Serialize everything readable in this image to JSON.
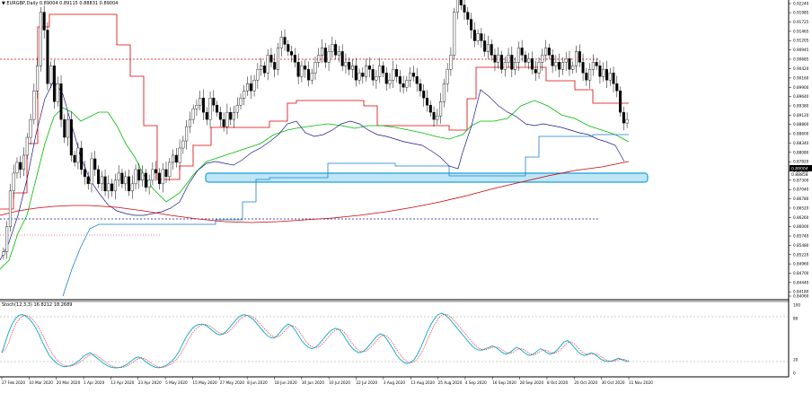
{
  "header": {
    "symbol_line": "▼ EURGBP,Daily  0.89004 0.89115 0.88831 0.89004"
  },
  "indicator": {
    "title": "Stoch(12,3,3) 16.8212 18.2689"
  },
  "colors": {
    "bull": "#000000",
    "bear": "#000000",
    "red": "#dd0000",
    "green": "#00bb00",
    "blue": "#1a7fd0",
    "navy": "#1a1a8a",
    "ma_red": "#cc0000",
    "zone_fill": "#bfe6f7",
    "zone_stroke": "#1aa0d8",
    "stoch_main": "#00a8cc",
    "stoch_signal": "#ee3333"
  },
  "chart_data": [
    {
      "type": "candlestick",
      "title": "EURGBP,Daily",
      "ylim": [
        0.8406,
        0.9224
      ],
      "y_ticks": [
        "0.92240",
        "0.91985",
        "0.91725",
        "0.91465",
        "0.91205",
        "0.90945",
        "0.90685",
        "0.90420",
        "0.90160",
        "0.89900",
        "0.89640",
        "0.89380",
        "0.89120",
        "0.88860",
        "0.88600",
        "0.88340",
        "0.88080",
        "0.87820",
        "0.87560",
        "0.87300",
        "0.87040",
        "0.86780",
        "0.86520",
        "0.86260",
        "0.86000",
        "0.85740",
        "0.85480",
        "0.85220",
        "0.84960",
        "0.84700",
        "0.84440",
        "0.84180",
        "0.84060"
      ],
      "price_label": "0.89004",
      "price_label2": "0.88858",
      "x_tick_labels": [
        "27 Feb 2020",
        "10 Mar 2020",
        "20 Mar 2020",
        "1 Apr 2020",
        "13 Apr 2020",
        "23 Apr 2020",
        "5 May 2020",
        "15 May 2020",
        "27 May 2020",
        "8 Jun 2020",
        "18 Jun 2020",
        "30 Jun 2020",
        "10 Jul 2020",
        "22 Jul 2020",
        "3 Aug 2020",
        "13 Aug 2020",
        "25 Aug 2020",
        "4 Sep 2020",
        "16 Sep 2020",
        "28 Sep 2020",
        "8 Oct 2020",
        "20 Oct 2020",
        "30 Oct 2020",
        "11 Nov 2020"
      ],
      "closes": [
        0.853,
        0.86,
        0.87,
        0.875,
        0.878,
        0.876,
        0.88,
        0.885,
        0.89,
        0.898,
        0.905,
        0.92,
        0.915,
        0.9,
        0.905,
        0.895,
        0.9,
        0.89,
        0.885,
        0.89,
        0.88,
        0.878,
        0.882,
        0.876,
        0.874,
        0.872,
        0.879,
        0.876,
        0.872,
        0.874,
        0.87,
        0.872,
        0.87,
        0.873,
        0.875,
        0.872,
        0.874,
        0.87,
        0.872,
        0.876,
        0.873,
        0.875,
        0.871,
        0.873,
        0.876,
        0.875,
        0.872,
        0.876,
        0.874,
        0.878,
        0.88,
        0.878,
        0.882,
        0.884,
        0.888,
        0.89,
        0.893,
        0.894,
        0.896,
        0.892,
        0.89,
        0.896,
        0.894,
        0.892,
        0.89,
        0.888,
        0.892,
        0.89,
        0.892,
        0.894,
        0.896,
        0.898,
        0.9,
        0.898,
        0.901,
        0.904,
        0.905,
        0.903,
        0.908,
        0.906,
        0.904,
        0.91,
        0.913,
        0.911,
        0.909,
        0.908,
        0.906,
        0.902,
        0.905,
        0.904,
        0.901,
        0.903,
        0.906,
        0.908,
        0.91,
        0.906,
        0.909,
        0.911,
        0.908,
        0.909,
        0.905,
        0.906,
        0.904,
        0.905,
        0.901,
        0.903,
        0.902,
        0.905,
        0.904,
        0.901,
        0.902,
        0.905,
        0.903,
        0.9,
        0.901,
        0.904,
        0.902,
        0.9,
        0.899,
        0.901,
        0.903,
        0.902,
        0.9,
        0.898,
        0.896,
        0.894,
        0.892,
        0.89,
        0.891,
        0.895,
        0.9,
        0.904,
        0.908,
        0.92,
        0.926,
        0.922,
        0.92,
        0.918,
        0.915,
        0.912,
        0.914,
        0.912,
        0.909,
        0.911,
        0.908,
        0.906,
        0.908,
        0.904,
        0.906,
        0.908,
        0.904,
        0.906,
        0.91,
        0.908,
        0.906,
        0.907,
        0.904,
        0.903,
        0.906,
        0.908,
        0.91,
        0.908,
        0.905,
        0.906,
        0.904,
        0.906,
        0.907,
        0.904,
        0.905,
        0.909,
        0.906,
        0.903,
        0.901,
        0.904,
        0.906,
        0.905,
        0.902,
        0.904,
        0.901,
        0.903,
        0.9,
        0.898,
        0.892,
        0.889,
        0.89
      ]
    },
    {
      "type": "line",
      "title": "Stoch(12,3,3)",
      "ylim": [
        0,
        100
      ],
      "y_ticks": [
        "100",
        "80",
        "20",
        "0"
      ],
      "main": [
        30,
        45,
        60,
        72,
        80,
        85,
        86,
        84,
        80,
        74,
        66,
        56,
        45,
        35,
        26,
        20,
        15,
        12,
        10,
        10,
        11,
        13,
        16,
        20,
        25,
        28,
        30,
        26,
        22,
        18,
        14,
        11,
        9,
        8,
        8,
        9,
        11,
        14,
        18,
        22,
        24,
        22,
        18,
        14,
        11,
        9,
        8,
        9,
        11,
        14,
        18,
        24,
        32,
        42,
        52,
        60,
        66,
        70,
        72,
        72,
        70,
        66,
        62,
        58,
        56,
        58,
        62,
        68,
        74,
        80,
        84,
        86,
        85,
        82,
        78,
        72,
        66,
        60,
        55,
        52,
        52,
        56,
        62,
        68,
        72,
        70,
        64,
        56,
        48,
        42,
        38,
        36,
        38,
        42,
        48,
        54,
        60,
        64,
        66,
        64,
        58,
        50,
        42,
        36,
        32,
        30,
        32,
        36,
        42,
        48,
        54,
        58,
        56,
        50,
        42,
        34,
        26,
        20,
        16,
        14,
        16,
        20,
        28,
        38,
        50,
        62,
        72,
        80,
        86,
        88,
        86,
        82,
        76,
        70,
        64,
        58,
        52,
        46,
        40,
        36,
        34,
        34,
        36,
        38,
        40,
        38,
        34,
        30,
        28,
        30,
        34,
        38,
        36,
        32,
        28,
        26,
        28,
        32,
        36,
        34,
        30,
        28,
        30,
        34,
        40,
        46,
        48,
        44,
        38,
        32,
        28,
        26,
        28,
        30,
        28,
        24,
        20,
        18,
        17,
        18,
        20,
        22,
        20,
        18,
        17
      ]
    }
  ]
}
